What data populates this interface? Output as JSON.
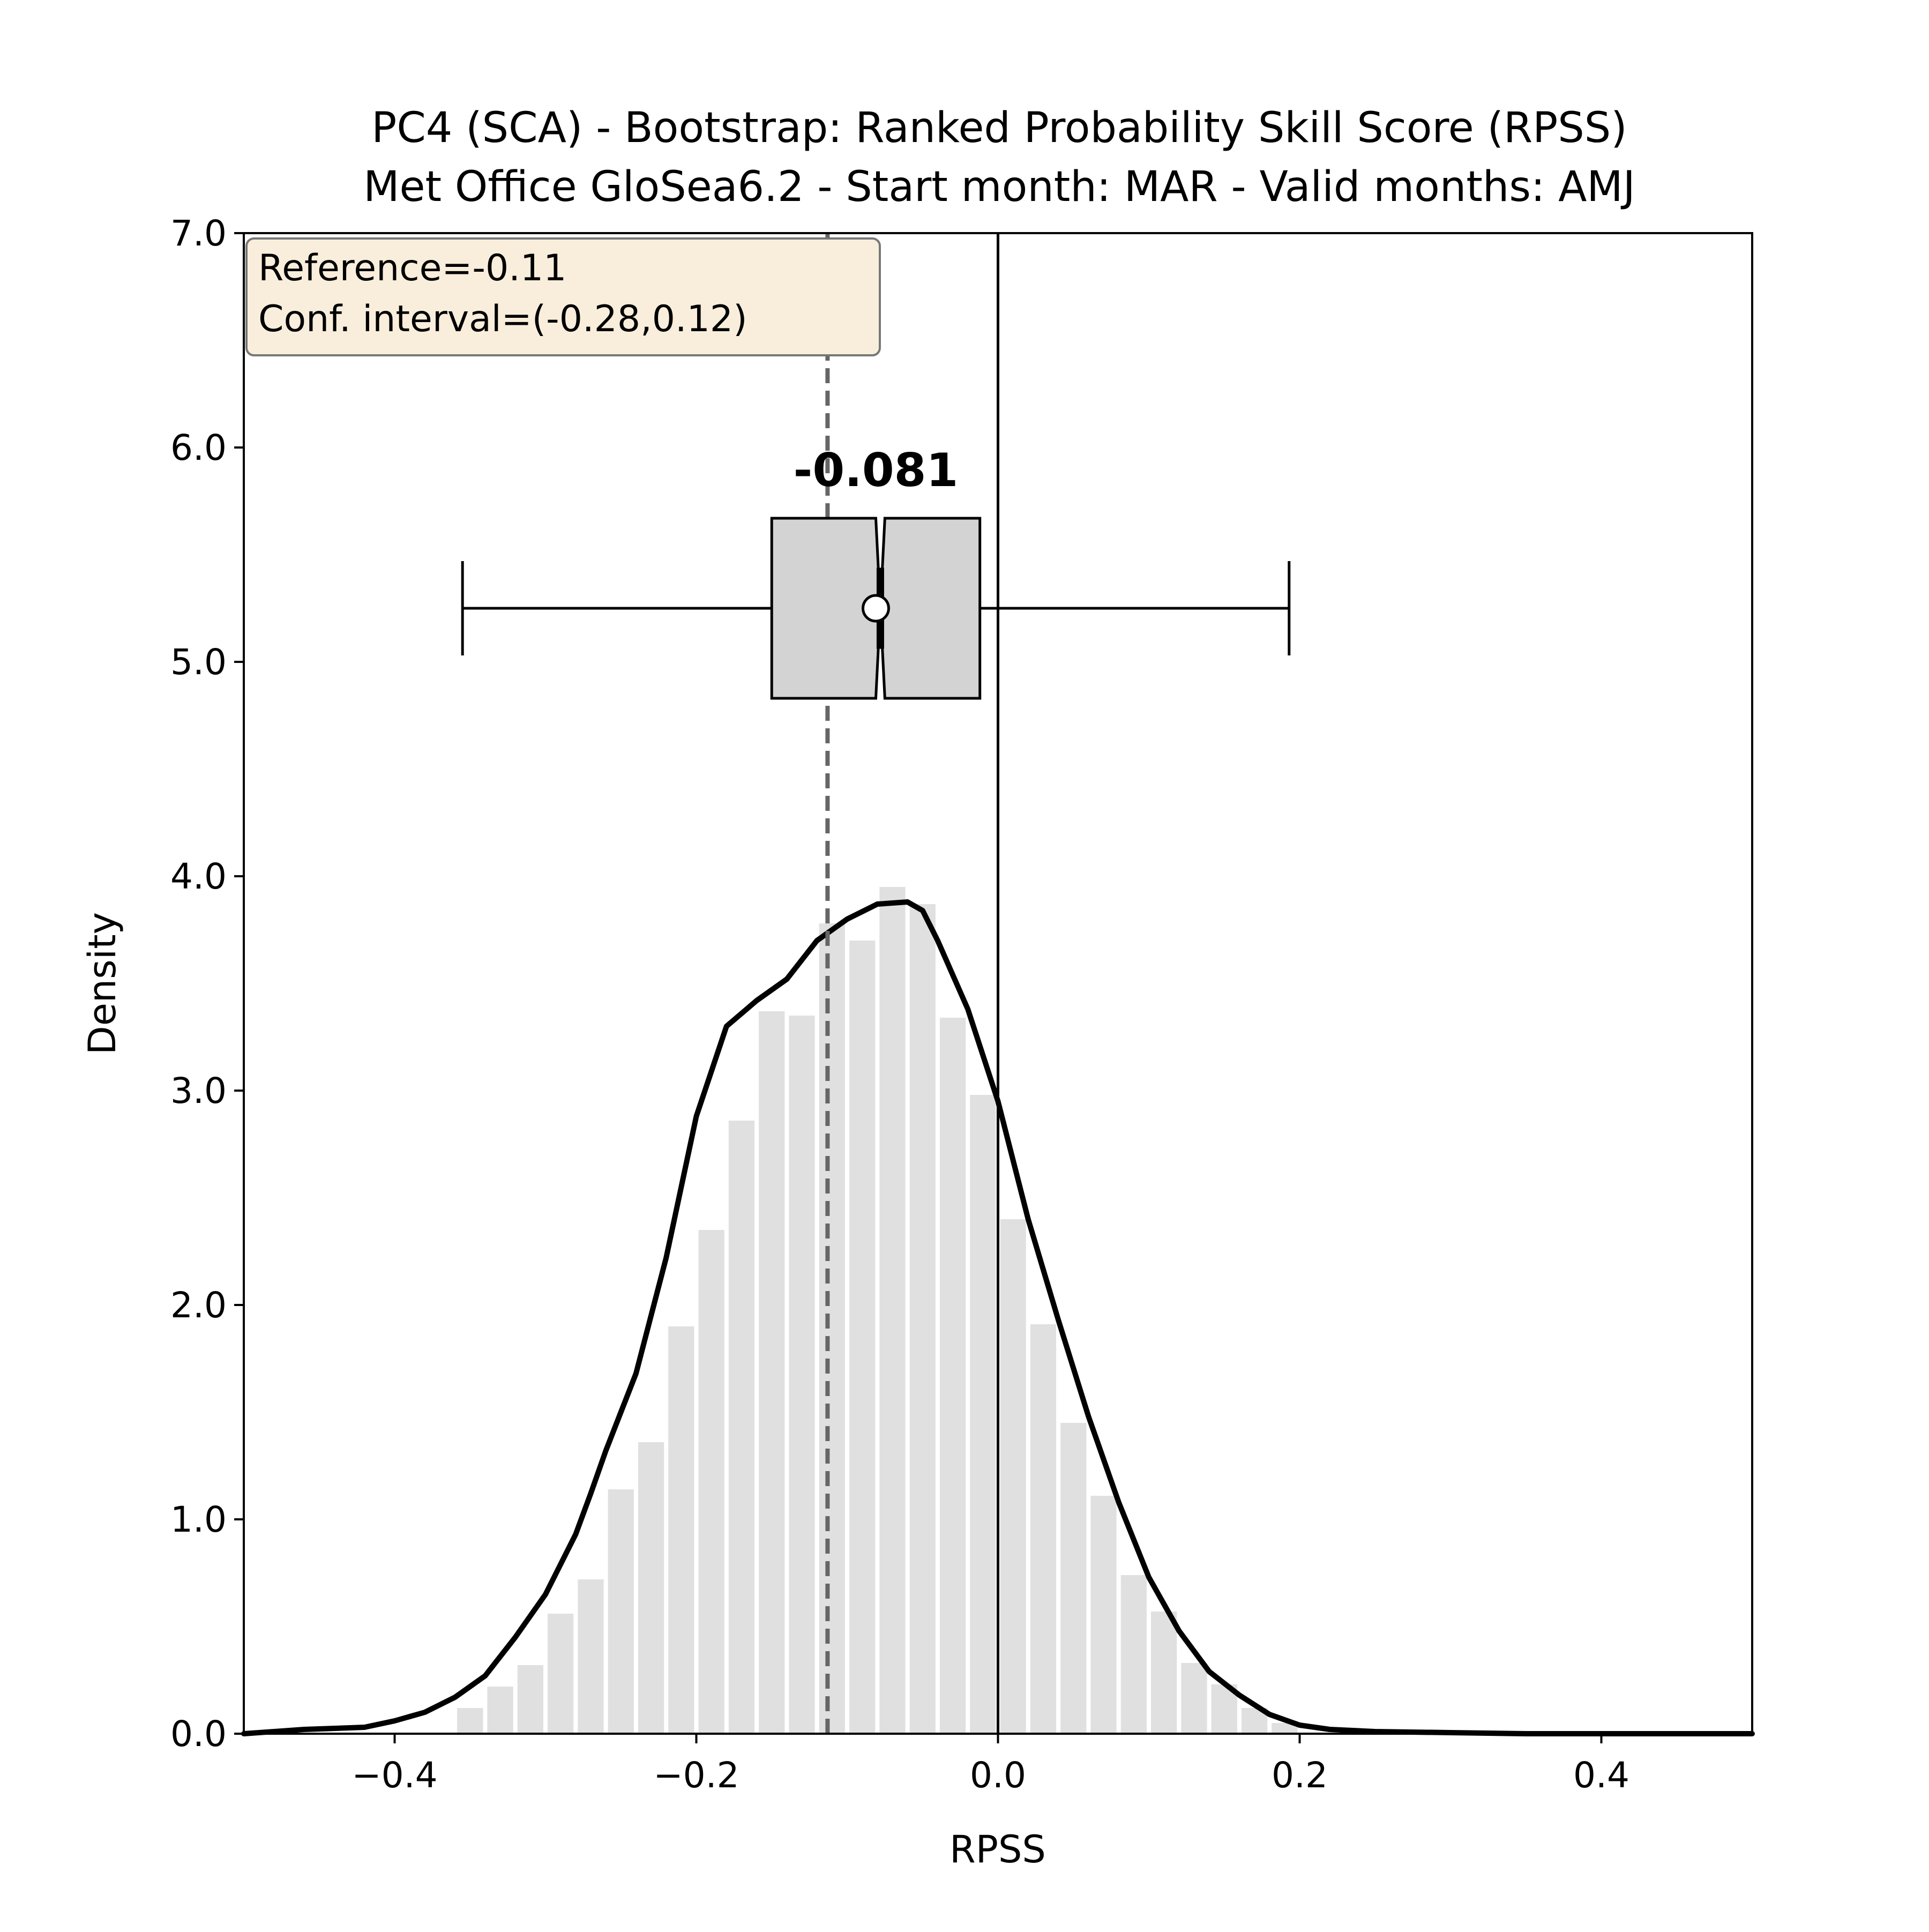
{
  "chart_data": {
    "type": "bar",
    "title": [
      "PC4 (SCA) - Bootstrap: Ranked Probability Skill Score (RPSS)",
      "Met Office GloSea6.2 - Start month: MAR - Valid months: AMJ"
    ],
    "xlabel": "RPSS",
    "ylabel": "Density",
    "xlim": [
      -0.5,
      0.5
    ],
    "ylim": [
      0,
      7
    ],
    "xticks": [
      -0.4,
      -0.2,
      0.0,
      0.2,
      0.4
    ],
    "xtick_labels": [
      "−0.4",
      "−0.2",
      "0.0",
      "0.2",
      "0.4"
    ],
    "yticks": [
      0,
      1,
      2,
      3,
      4,
      5,
      6,
      7
    ],
    "ytick_labels": [
      "0.0",
      "1.0",
      "2.0",
      "3.0",
      "4.0",
      "5.0",
      "6.0",
      "7.0"
    ],
    "grid": false,
    "histogram": {
      "bin_width": 0.02,
      "bins": [
        {
          "x0": -0.36,
          "value": 0.12
        },
        {
          "x0": -0.34,
          "value": 0.22
        },
        {
          "x0": -0.32,
          "value": 0.32
        },
        {
          "x0": -0.3,
          "value": 0.56
        },
        {
          "x0": -0.28,
          "value": 0.72
        },
        {
          "x0": -0.26,
          "value": 1.14
        },
        {
          "x0": -0.24,
          "value": 1.36
        },
        {
          "x0": -0.22,
          "value": 1.9
        },
        {
          "x0": -0.2,
          "value": 2.35
        },
        {
          "x0": -0.18,
          "value": 2.86
        },
        {
          "x0": -0.16,
          "value": 3.37
        },
        {
          "x0": -0.14,
          "value": 3.35
        },
        {
          "x0": -0.12,
          "value": 3.78
        },
        {
          "x0": -0.1,
          "value": 3.7
        },
        {
          "x0": -0.08,
          "value": 3.95
        },
        {
          "x0": -0.06,
          "value": 3.87
        },
        {
          "x0": -0.04,
          "value": 3.34
        },
        {
          "x0": -0.02,
          "value": 2.98
        },
        {
          "x0": 0.0,
          "value": 2.4
        },
        {
          "x0": 0.02,
          "value": 1.91
        },
        {
          "x0": 0.04,
          "value": 1.45
        },
        {
          "x0": 0.06,
          "value": 1.11
        },
        {
          "x0": 0.08,
          "value": 0.74
        },
        {
          "x0": 0.1,
          "value": 0.57
        },
        {
          "x0": 0.12,
          "value": 0.33
        },
        {
          "x0": 0.14,
          "value": 0.23
        },
        {
          "x0": 0.16,
          "value": 0.12
        },
        {
          "x0": 0.18,
          "value": 0.05
        }
      ],
      "color": "#e0e0e0"
    },
    "kde_line": {
      "x": [
        -0.5,
        -0.46,
        -0.42,
        -0.4,
        -0.38,
        -0.36,
        -0.34,
        -0.32,
        -0.3,
        -0.28,
        -0.27,
        -0.26,
        -0.24,
        -0.22,
        -0.2,
        -0.18,
        -0.16,
        -0.14,
        -0.12,
        -0.1,
        -0.08,
        -0.06,
        -0.05,
        -0.04,
        -0.02,
        0.0,
        0.02,
        0.04,
        0.06,
        0.08,
        0.1,
        0.12,
        0.14,
        0.16,
        0.18,
        0.2,
        0.22,
        0.25,
        0.3,
        0.35,
        0.4,
        0.45,
        0.5
      ],
      "y": [
        0.0,
        0.02,
        0.03,
        0.06,
        0.1,
        0.17,
        0.27,
        0.45,
        0.65,
        0.93,
        1.12,
        1.32,
        1.68,
        2.22,
        2.88,
        3.3,
        3.42,
        3.52,
        3.7,
        3.8,
        3.87,
        3.88,
        3.84,
        3.7,
        3.38,
        2.95,
        2.4,
        1.93,
        1.48,
        1.08,
        0.73,
        0.48,
        0.29,
        0.18,
        0.09,
        0.04,
        0.02,
        0.01,
        0.005,
        0.0,
        0.0,
        0.0,
        0.0
      ],
      "color": "#000000"
    },
    "reference_line": {
      "x": -0.113,
      "style": "dashed",
      "color": "#666666"
    },
    "zero_line": {
      "x": 0.0,
      "color": "#000000"
    },
    "boxplot": {
      "y_center": 5.25,
      "y_half_height": 0.42,
      "whisker_low": -0.355,
      "q1": -0.15,
      "median": -0.078,
      "mean": -0.081,
      "q3": -0.012,
      "whisker_high": 0.193,
      "notch_low": -0.081,
      "notch_high": -0.075,
      "cap_half_height": 0.22,
      "fill": "#d3d3d3"
    },
    "median_label": {
      "text": "-0.081",
      "x": -0.081,
      "y": 5.82
    },
    "info_box": {
      "lines": [
        "Reference=-0.11",
        "Conf. interval=(-0.28,0.12)"
      ],
      "placement": "top-left",
      "fill": "#f8eedb",
      "edge": "#777777"
    }
  }
}
